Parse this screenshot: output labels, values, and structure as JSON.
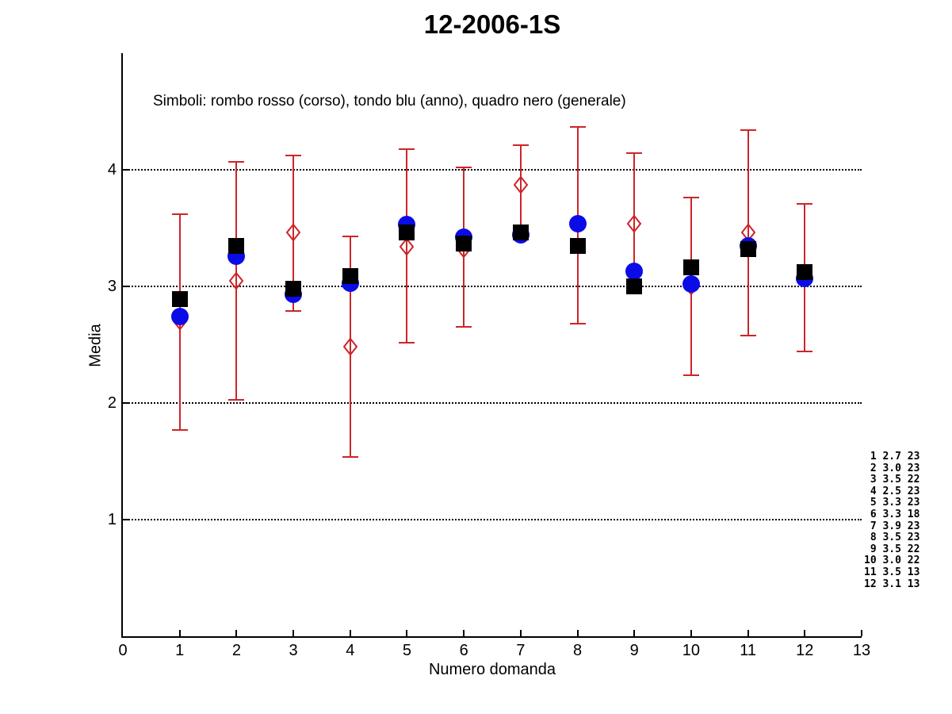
{
  "title": "12-2006-1S",
  "annotation": "Simboli: rombo rosso (corso), tondo blu (anno), quadro nero (generale)",
  "colors": {
    "corso_red": "#cc2529",
    "anno_blue": "#0b0be8",
    "generale_black": "#000000",
    "axis": "#000000",
    "background": "#ffffff"
  },
  "chart_data": {
    "type": "scatter",
    "title": "12-2006-1S",
    "xlabel": "Numero domanda",
    "ylabel": "Media",
    "xlim": [
      0,
      13
    ],
    "ylim": [
      0,
      5
    ],
    "x_ticks": [
      "0",
      "1",
      "2",
      "3",
      "4",
      "5",
      "6",
      "7",
      "8",
      "9",
      "10",
      "11",
      "12",
      "13"
    ],
    "y_ticks": [
      "1",
      "2",
      "3",
      "4"
    ],
    "grid": "horizontal dotted lines at y = 1,2,3,4",
    "legend_text": "Simboli: rombo rosso (corso), tondo blu (anno), quadro nero (generale)",
    "categories": [
      1,
      2,
      3,
      4,
      5,
      6,
      7,
      8,
      9,
      10,
      11,
      12
    ],
    "series": [
      {
        "name": "corso",
        "marker": "open-diamond",
        "color": "#cc2529",
        "values": [
          2.7,
          3.05,
          3.46,
          2.48,
          3.34,
          3.32,
          3.87,
          3.53,
          3.54,
          3.0,
          3.46,
          3.09
        ],
        "err_hi": [
          3.62,
          4.07,
          4.12,
          3.43,
          4.18,
          4.02,
          4.21,
          4.37,
          4.14,
          3.76,
          4.34,
          3.71
        ],
        "err_lo": [
          1.77,
          2.03,
          2.79,
          1.54,
          2.52,
          2.65,
          3.52,
          2.68,
          2.95,
          2.24,
          2.58,
          2.44
        ]
      },
      {
        "name": "anno",
        "marker": "filled-circle",
        "color": "#0b0be8",
        "values": [
          2.74,
          3.26,
          2.93,
          3.03,
          3.53,
          3.42,
          3.44,
          3.54,
          3.13,
          3.02,
          3.35,
          3.07
        ]
      },
      {
        "name": "generale",
        "marker": "filled-square",
        "color": "#000000",
        "values": [
          2.89,
          3.35,
          2.98,
          3.09,
          3.46,
          3.37,
          3.46,
          3.35,
          3.0,
          3.16,
          3.32,
          3.12
        ]
      }
    ]
  },
  "side_table": {
    "rows": [
      [
        1,
        "2.7",
        23
      ],
      [
        2,
        "3.0",
        23
      ],
      [
        3,
        "3.5",
        22
      ],
      [
        4,
        "2.5",
        23
      ],
      [
        5,
        "3.3",
        23
      ],
      [
        6,
        "3.3",
        18
      ],
      [
        7,
        "3.9",
        23
      ],
      [
        8,
        "3.5",
        23
      ],
      [
        9,
        "3.5",
        22
      ],
      [
        10,
        "3.0",
        22
      ],
      [
        11,
        "3.5",
        13
      ],
      [
        12,
        "3.1",
        13
      ]
    ]
  }
}
